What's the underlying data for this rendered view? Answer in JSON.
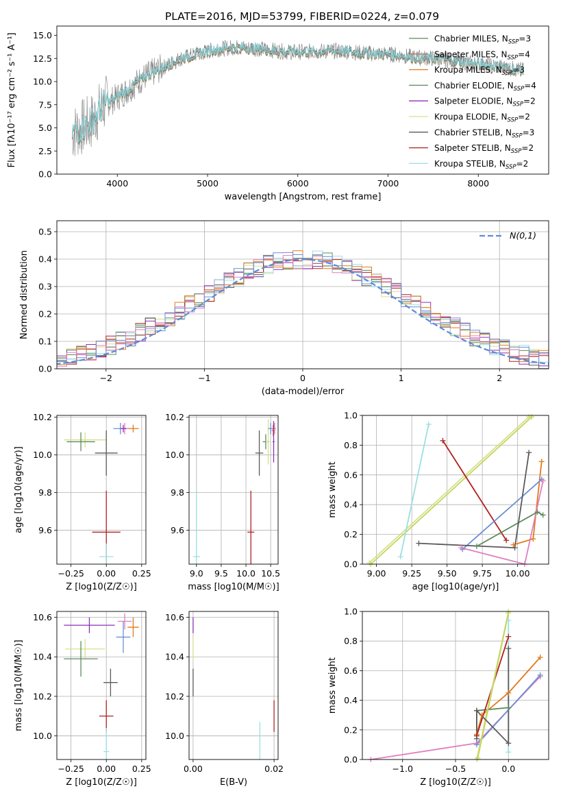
{
  "figure": {
    "title": "PLATE=2016, MJD=53799, FIBERID=0224, z=0.079"
  },
  "model_colors": [
    "#5b8a5b",
    "#8e2fb4",
    "#d6e08a",
    "#5a5a5a",
    "#b02020",
    "#9adfe2",
    "#e07a1b",
    "#e07fbf",
    "#6a8fd4"
  ],
  "chart_data": [
    {
      "id": "spectrum",
      "type": "line",
      "title": "PLATE=2016, MJD=53799, FIBERID=0224, z=0.079",
      "xlabel": "wavelength [Angstrom, rest frame]",
      "ylabel": "Flux [fλ10⁻¹⁷ erg cm⁻² s⁻¹ A⁻¹]",
      "xlim": [
        3330,
        8780
      ],
      "ylim": [
        0,
        16
      ],
      "xticks": [
        4000,
        5000,
        6000,
        7000,
        8000
      ],
      "yticks": [
        0.0,
        2.5,
        5.0,
        7.5,
        10.0,
        12.5,
        15.0
      ],
      "grid": false,
      "legend_position": "right",
      "continuum_points": [
        [
          3500,
          4.5
        ],
        [
          3700,
          5.5
        ],
        [
          3850,
          7.5
        ],
        [
          3950,
          8.0
        ],
        [
          4100,
          9.0
        ],
        [
          4300,
          10.5
        ],
        [
          4500,
          11.5
        ],
        [
          4700,
          12.5
        ],
        [
          4900,
          13.0
        ],
        [
          5100,
          13.5
        ],
        [
          5300,
          13.7
        ],
        [
          5500,
          13.6
        ],
        [
          5700,
          13.4
        ],
        [
          5900,
          13.2
        ],
        [
          6100,
          13.2
        ],
        [
          6300,
          13.3
        ],
        [
          6500,
          13.3
        ],
        [
          6700,
          13.1
        ],
        [
          6900,
          13.0
        ],
        [
          7100,
          12.9
        ],
        [
          7300,
          12.6
        ],
        [
          7500,
          12.5
        ],
        [
          7700,
          12.3
        ],
        [
          7900,
          12.0
        ],
        [
          8100,
          11.8
        ],
        [
          8300,
          11.5
        ],
        [
          8500,
          11.2
        ]
      ],
      "legend": [
        {
          "name": "Chabrier MILES",
          "nssp": "3",
          "color": "#5b8a5b"
        },
        {
          "name": "Salpeter MILES",
          "nssp": "4",
          "color": "#e06a5a"
        },
        {
          "name": "Kroupa MILES",
          "nssp": "3",
          "color": "#e07a1b"
        },
        {
          "name": "Chabrier ELODIE",
          "nssp": "4",
          "color": "#5b8a5b"
        },
        {
          "name": "Salpeter ELODIE",
          "nssp": "2",
          "color": "#8e2fb4"
        },
        {
          "name": "Kroupa ELODIE",
          "nssp": "2",
          "color": "#d6e08a"
        },
        {
          "name": "Chabrier STELIB",
          "nssp": "3",
          "color": "#5a5a5a"
        },
        {
          "name": "Salpeter STELIB",
          "nssp": "2",
          "color": "#b02020"
        },
        {
          "name": "Kroupa STELIB",
          "nssp": "2",
          "color": "#9adfe2"
        }
      ],
      "legend_label_prefix": "N",
      "legend_label_sub": "SSP"
    },
    {
      "id": "residuals",
      "type": "line",
      "xlabel": "(data-model)/error",
      "ylabel": "Normed distribution",
      "xlim": [
        -2.5,
        2.5
      ],
      "ylim": [
        0,
        0.54
      ],
      "xticks": [
        -2,
        -1,
        0,
        1,
        2
      ],
      "yticks": [
        0.0,
        0.1,
        0.2,
        0.3,
        0.4,
        0.5
      ],
      "grid": true,
      "legend": [
        {
          "name": "N(0,1)",
          "style": "dashed",
          "color": "#5b8bd6"
        }
      ],
      "legend_position": "top-right",
      "bin_width": 0.1
    },
    {
      "id": "age_vs_Z",
      "type": "scatter",
      "xlabel": "Z [log10(Z/Z☉)]",
      "ylabel": "age [log10(age/yr)]",
      "xlim": [
        -0.35,
        0.28
      ],
      "ylim": [
        9.42,
        10.21
      ],
      "xticks": [
        -0.25,
        0.0,
        0.25
      ],
      "yticks": [
        9.6,
        9.8,
        10.0,
        10.2
      ],
      "grid": true,
      "points": [
        {
          "x": -0.15,
          "y": 10.08,
          "xerr": 0.15,
          "yerr": 0.04,
          "color": "#d6e08a"
        },
        {
          "x": -0.18,
          "y": 10.07,
          "xerr": 0.1,
          "yerr": 0.05,
          "color": "#5b8a5b"
        },
        {
          "x": 0.0,
          "y": 10.01,
          "xerr": 0.08,
          "yerr": 0.12,
          "color": "#5a5a5a"
        },
        {
          "x": 0.0,
          "y": 9.59,
          "xerr": 0.1,
          "yerr": 0.22,
          "color": "#b02020"
        },
        {
          "x": 0.0,
          "y": 9.46,
          "xerr": 0.05,
          "yerr": 0.07,
          "color": "#9adfe2"
        },
        {
          "x": 0.1,
          "y": 10.14,
          "xerr": 0.05,
          "yerr": 0.03,
          "color": "#6a8fd4"
        },
        {
          "x": 0.19,
          "y": 10.14,
          "xerr": 0.04,
          "yerr": 0.02,
          "color": "#e07a1b"
        },
        {
          "x": 0.13,
          "y": 10.14,
          "xerr": 0.03,
          "yerr": 0.03,
          "color": "#e07fbf"
        },
        {
          "x": 0.12,
          "y": 10.14,
          "xerr": 0.02,
          "yerr": 0.02,
          "color": "#8e2fb4"
        }
      ]
    },
    {
      "id": "age_vs_mass",
      "type": "scatter",
      "xlabel": "mass [log10(M/M☉)]",
      "ylabel": "",
      "xlim": [
        8.85,
        10.65
      ],
      "ylim": [
        9.42,
        10.21
      ],
      "xticks": [
        9.0,
        9.5,
        10.0,
        10.5
      ],
      "yticks": [
        9.6,
        9.8,
        10.0,
        10.2
      ],
      "grid": true,
      "points": [
        {
          "x": 10.27,
          "y": 10.01,
          "xerr": 0.08,
          "yerr": 0.12,
          "color": "#5a5a5a"
        },
        {
          "x": 10.4,
          "y": 10.07,
          "xerr": 0.06,
          "yerr": 0.04,
          "color": "#5b8a5b"
        },
        {
          "x": 10.45,
          "y": 10.07,
          "xerr": 0.05,
          "yerr": 0.12,
          "color": "#d6e08a"
        },
        {
          "x": 10.1,
          "y": 9.59,
          "xerr": 0.07,
          "yerr": 0.22,
          "color": "#b02020"
        },
        {
          "x": 9.0,
          "y": 9.46,
          "xerr": 0.07,
          "yerr": 0.35,
          "color": "#9adfe2"
        },
        {
          "x": 10.5,
          "y": 10.14,
          "xerr": 0.05,
          "yerr": 0.03,
          "color": "#6a8fd4"
        },
        {
          "x": 10.55,
          "y": 10.13,
          "xerr": 0.03,
          "yerr": 0.03,
          "color": "#e07a1b"
        },
        {
          "x": 10.58,
          "y": 10.14,
          "xerr": 0.03,
          "yerr": 0.03,
          "color": "#e07fbf"
        },
        {
          "x": 10.56,
          "y": 10.07,
          "xerr": 0.02,
          "yerr": 0.11,
          "color": "#8e2fb4"
        }
      ]
    },
    {
      "id": "weight_vs_age",
      "type": "line",
      "xlabel": "age [log10(age/yr)]",
      "ylabel": "mass weight",
      "xlim": [
        8.9,
        10.22
      ],
      "ylim": [
        0,
        1.0
      ],
      "xticks": [
        9.0,
        9.25,
        9.5,
        9.75,
        10.0
      ],
      "yticks": [
        0.0,
        0.2,
        0.4,
        0.6,
        0.8,
        1.0
      ],
      "grid": true,
      "series": [
        {
          "color": "#d6e08a",
          "points": [
            [
              8.95,
              0.01
            ],
            [
              10.08,
              0.99
            ]
          ]
        },
        {
          "color": "#c4d45a",
          "points": [
            [
              8.96,
              0.0
            ],
            [
              10.1,
              0.99
            ]
          ]
        },
        {
          "color": "#9adfe2",
          "points": [
            [
              9.17,
              0.05
            ],
            [
              9.37,
              0.94
            ]
          ]
        },
        {
          "color": "#b02020",
          "points": [
            [
              9.47,
              0.83
            ],
            [
              9.92,
              0.16
            ]
          ]
        },
        {
          "color": "#e07a1b",
          "points": [
            [
              9.97,
              0.13
            ],
            [
              10.11,
              0.17
            ],
            [
              10.17,
              0.69
            ]
          ]
        },
        {
          "color": "#6a8fd4",
          "points": [
            [
              9.61,
              0.1
            ],
            [
              10.17,
              0.57
            ]
          ]
        },
        {
          "color": "#e07fbf",
          "points": [
            [
              9.6,
              0.11
            ],
            [
              10.05,
              0.0
            ],
            [
              10.18,
              0.56
            ]
          ]
        },
        {
          "color": "#5b8a5b",
          "points": [
            [
              9.71,
              0.12
            ],
            [
              10.14,
              0.35
            ],
            [
              10.18,
              0.33
            ]
          ]
        },
        {
          "color": "#5a5a5a",
          "points": [
            [
              9.3,
              0.14
            ],
            [
              9.98,
              0.11
            ],
            [
              10.08,
              0.75
            ]
          ]
        }
      ]
    },
    {
      "id": "mass_vs_Z",
      "type": "scatter",
      "xlabel": "Z [log10(Z/Z☉)]",
      "ylabel": "mass [log10(M/M☉)]",
      "xlim": [
        -0.35,
        0.28
      ],
      "ylim": [
        9.88,
        10.63
      ],
      "xticks": [
        -0.25,
        0.0,
        0.25
      ],
      "yticks": [
        10.0,
        10.2,
        10.4,
        10.6
      ],
      "grid": true,
      "points": [
        {
          "x": -0.12,
          "y": 10.56,
          "xerr": 0.18,
          "yerr": 0.04,
          "color": "#8e2fb4"
        },
        {
          "x": -0.15,
          "y": 10.44,
          "xerr": 0.14,
          "yerr": 0.05,
          "color": "#d6e08a"
        },
        {
          "x": -0.18,
          "y": 10.39,
          "xerr": 0.12,
          "yerr": 0.09,
          "color": "#5b8a5b"
        },
        {
          "x": 0.03,
          "y": 10.27,
          "xerr": 0.05,
          "yerr": 0.07,
          "color": "#5a5a5a"
        },
        {
          "x": 0.0,
          "y": 10.1,
          "xerr": 0.05,
          "yerr": 0.08,
          "color": "#b02020"
        },
        {
          "x": 0.0,
          "y": 9.92,
          "xerr": 0.02,
          "yerr": 0.12,
          "color": "#9adfe2"
        },
        {
          "x": 0.13,
          "y": 10.58,
          "xerr": 0.05,
          "yerr": 0.04,
          "color": "#e07fbf"
        },
        {
          "x": 0.19,
          "y": 10.55,
          "xerr": 0.04,
          "yerr": 0.05,
          "color": "#e07a1b"
        },
        {
          "x": 0.12,
          "y": 10.5,
          "xerr": 0.05,
          "yerr": 0.08,
          "color": "#6a8fd4"
        }
      ]
    },
    {
      "id": "mass_vs_ebv",
      "type": "scatter",
      "xlabel": "E(B-V)",
      "ylabel": "",
      "xlim": [
        -0.001,
        0.021
      ],
      "ylim": [
        9.88,
        10.63
      ],
      "xticks": [
        0.0,
        0.02
      ],
      "yticks": [
        10.0,
        10.2,
        10.4,
        10.6
      ],
      "grid": true,
      "points": [
        {
          "x": 0.0,
          "y": 10.56,
          "xerr": 0.0,
          "yerr": 0.04,
          "color": "#8e2fb4"
        },
        {
          "x": 0.0,
          "y": 10.44,
          "xerr": 0.0,
          "yerr": 0.06,
          "color": "#d6e08a"
        },
        {
          "x": 0.0,
          "y": 10.27,
          "xerr": 0.0,
          "yerr": 0.07,
          "color": "#5a5a5a"
        },
        {
          "x": 0.02,
          "y": 10.1,
          "xerr": 0.0,
          "yerr": 0.08,
          "color": "#b02020"
        },
        {
          "x": 0.0165,
          "y": 9.95,
          "xerr": 0.0,
          "yerr": 0.12,
          "color": "#9adfe2"
        }
      ]
    },
    {
      "id": "weight_vs_Z",
      "type": "line",
      "xlabel": "Z [log10(Z/Z☉)]",
      "ylabel": "mass weight",
      "xlim": [
        -1.38,
        0.38
      ],
      "ylim": [
        0,
        1.0
      ],
      "xticks": [
        -1.0,
        -0.5,
        0.0
      ],
      "yticks": [
        0.0,
        0.2,
        0.4,
        0.6,
        0.8,
        1.0
      ],
      "grid": true,
      "series": [
        {
          "color": "#e07fbf",
          "points": [
            [
              -1.3,
              0.0
            ],
            [
              -0.3,
              0.11
            ],
            [
              0.3,
              0.56
            ]
          ]
        },
        {
          "color": "#6a8fd4",
          "points": [
            [
              -0.3,
              0.1
            ],
            [
              0.3,
              0.57
            ]
          ]
        },
        {
          "color": "#e07a1b",
          "points": [
            [
              -0.3,
              0.17
            ],
            [
              -0.25,
              0.3
            ],
            [
              0.0,
              0.45
            ],
            [
              0.3,
              0.69
            ]
          ]
        },
        {
          "color": "#5b8a5b",
          "points": [
            [
              -0.3,
              0.33
            ],
            [
              0.0,
              0.35
            ],
            [
              -0.3,
              0.33
            ],
            [
              -0.3,
              0.16
            ]
          ]
        },
        {
          "color": "#b02020",
          "points": [
            [
              -0.3,
              0.16
            ],
            [
              0.0,
              0.83
            ]
          ]
        },
        {
          "color": "#d6e08a",
          "points": [
            [
              -0.3,
              0.0
            ],
            [
              0.0,
              1.0
            ]
          ]
        },
        {
          "color": "#c4d45a",
          "points": [
            [
              -0.29,
              0.01
            ],
            [
              0.0,
              0.99
            ]
          ]
        },
        {
          "color": "#9adfe2",
          "points": [
            [
              0.0,
              0.05
            ],
            [
              0.0,
              0.94
            ]
          ]
        },
        {
          "color": "#5a5a5a",
          "points": [
            [
              -0.3,
              0.14
            ],
            [
              -0.3,
              0.33
            ],
            [
              0.0,
              0.11
            ],
            [
              0.0,
              0.75
            ]
          ]
        }
      ]
    }
  ]
}
